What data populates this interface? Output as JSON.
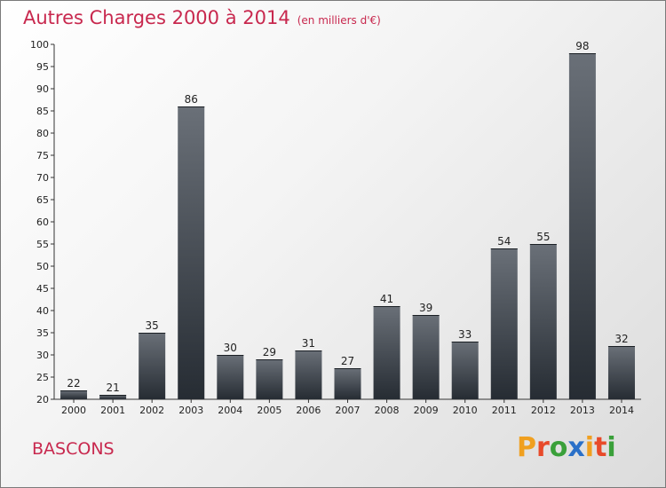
{
  "header": {
    "title": "Autres Charges 2000 à 2014",
    "subtitle": "(en milliers d'€)"
  },
  "footer": {
    "town": "BASCONS",
    "logo": "Proxiti"
  },
  "chart_data": {
    "type": "bar",
    "title": "Autres Charges 2000 à 2014",
    "subtitle": "(en milliers d'€)",
    "categories": [
      "2000",
      "2001",
      "2002",
      "2003",
      "2004",
      "2005",
      "2006",
      "2007",
      "2008",
      "2009",
      "2010",
      "2011",
      "2012",
      "2013",
      "2014"
    ],
    "values": [
      22,
      21,
      35,
      86,
      30,
      29,
      31,
      27,
      41,
      39,
      33,
      54,
      55,
      98,
      32
    ],
    "ylim": [
      20,
      100
    ],
    "yticks": [
      20,
      25,
      30,
      35,
      40,
      45,
      50,
      55,
      60,
      65,
      70,
      75,
      80,
      85,
      90,
      95,
      100
    ],
    "grid": false,
    "legend": "none",
    "colors": {
      "bar_top": "#6a7078",
      "bar_bottom": "#262c33",
      "text": "#c8284e"
    }
  }
}
